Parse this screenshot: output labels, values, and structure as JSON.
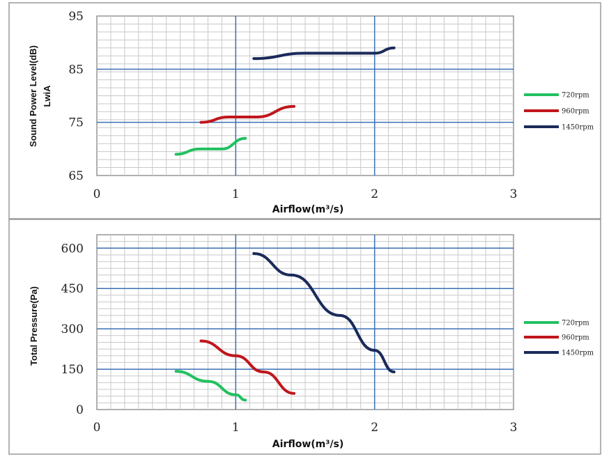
{
  "chart_data": [
    {
      "type": "line",
      "title": "",
      "xlabel": "Airflow(m³/s)",
      "ylabel_lines": [
        "Sound  Power Level(dB)",
        "LwiA"
      ],
      "xlim": [
        0,
        3
      ],
      "ylim": [
        65,
        95
      ],
      "x_ticks": [
        "0",
        "1",
        "2",
        "3"
      ],
      "y_ticks": [
        "65",
        "75",
        "85",
        "95"
      ],
      "grid": true,
      "legend": "right",
      "series": [
        {
          "name": "720rpm",
          "color": "#22c060",
          "x": [
            0.57,
            0.74,
            0.9,
            1.07
          ],
          "y": [
            69,
            70,
            70,
            72
          ]
        },
        {
          "name": "960rpm",
          "color": "#c0161c",
          "x": [
            0.75,
            0.95,
            1.15,
            1.42
          ],
          "y": [
            75,
            76,
            76,
            78
          ]
        },
        {
          "name": "1450rpm",
          "color": "#1a2a5a",
          "x": [
            1.13,
            1.5,
            1.75,
            2.0,
            2.14
          ],
          "y": [
            87,
            88,
            88,
            88,
            89
          ]
        }
      ]
    },
    {
      "type": "line",
      "title": "",
      "xlabel": "Airflow(m³/s)",
      "ylabel_lines": [
        "Total Pressure(Pa)"
      ],
      "xlim": [
        0,
        3
      ],
      "ylim": [
        0,
        650
      ],
      "x_ticks": [
        "0",
        "1",
        "2",
        "3"
      ],
      "y_ticks": [
        "0",
        "150",
        "300",
        "450",
        "600"
      ],
      "grid": true,
      "legend": "right",
      "series": [
        {
          "name": "720rpm",
          "color": "#22c060",
          "x": [
            0.57,
            0.8,
            1.0,
            1.07
          ],
          "y": [
            142,
            105,
            55,
            35
          ]
        },
        {
          "name": "960rpm",
          "color": "#c0161c",
          "x": [
            0.75,
            1.0,
            1.2,
            1.42
          ],
          "y": [
            255,
            200,
            140,
            60
          ]
        },
        {
          "name": "1450rpm",
          "color": "#1a2a5a",
          "x": [
            1.13,
            1.4,
            1.75,
            2.0,
            2.14
          ],
          "y": [
            580,
            500,
            350,
            220,
            140
          ]
        }
      ]
    }
  ]
}
